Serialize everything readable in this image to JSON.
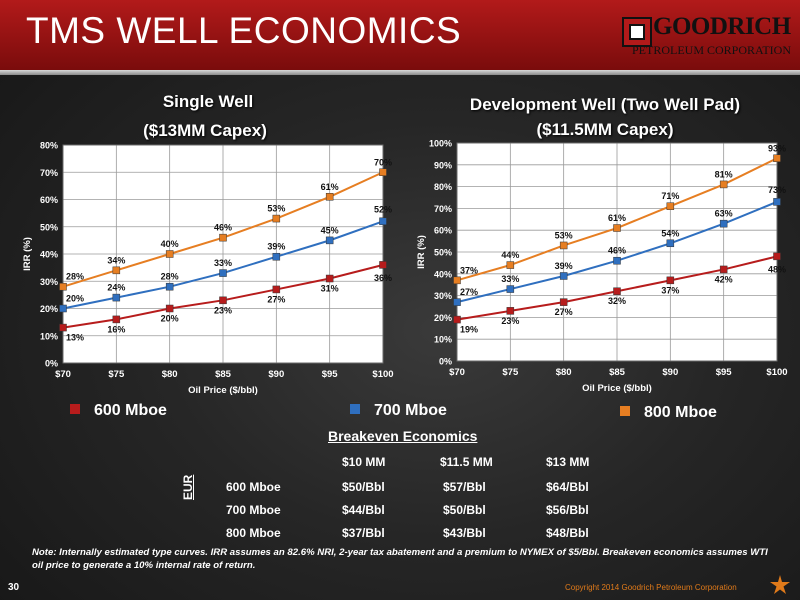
{
  "slide": {
    "title": "TMS WELL ECONOMICS",
    "page_number": "30",
    "logo": {
      "line1": "GOODRICH",
      "line2": "PETROLEUM CORPORATION"
    },
    "copyright": "Copyright 2014 Goodrich Petroleum Corporation"
  },
  "colors": {
    "header_red": "#b21a1a",
    "series_600": "#b71c1c",
    "series_700": "#2f6fbf",
    "series_800": "#e67e22",
    "logo_orange": "#e07a1a"
  },
  "chart_data": [
    {
      "type": "line",
      "title": "Single Well",
      "subtitle": "($13MM Capex)",
      "xlabel": "Oil Price ($/bbl)",
      "ylabel": "IRR (%)",
      "x": [
        "$70",
        "$75",
        "$80",
        "$85",
        "$90",
        "$95",
        "$100"
      ],
      "ylim": [
        0,
        80
      ],
      "yticks": [
        "0%",
        "10%",
        "20%",
        "30%",
        "40%",
        "50%",
        "60%",
        "70%",
        "80%"
      ],
      "grid": true,
      "series": [
        {
          "name": "600 Mboe",
          "values": [
            13,
            16,
            20,
            23,
            27,
            31,
            36
          ],
          "labels": [
            "13%",
            "16%",
            "20%",
            "23%",
            "27%",
            "31%",
            "36%"
          ]
        },
        {
          "name": "700 Mboe",
          "values": [
            20,
            24,
            28,
            33,
            39,
            45,
            52
          ],
          "labels": [
            "20%",
            "24%",
            "28%",
            "33%",
            "39%",
            "45%",
            "52%"
          ]
        },
        {
          "name": "800 Mboe",
          "values": [
            28,
            34,
            40,
            46,
            53,
            61,
            70
          ],
          "labels": [
            "28%",
            "34%",
            "40%",
            "46%",
            "53%",
            "61%",
            "70%"
          ]
        }
      ]
    },
    {
      "type": "line",
      "title": "Development Well (Two Well Pad)",
      "subtitle": "($11.5MM Capex)",
      "xlabel": "Oil Price ($/bbl)",
      "ylabel": "IRR (%)",
      "x": [
        "$70",
        "$75",
        "$80",
        "$85",
        "$90",
        "$95",
        "$100"
      ],
      "ylim": [
        0,
        100
      ],
      "yticks": [
        "0%",
        "10%",
        "20%",
        "30%",
        "40%",
        "50%",
        "60%",
        "70%",
        "80%",
        "90%",
        "100%"
      ],
      "grid": true,
      "series": [
        {
          "name": "600 Mboe",
          "values": [
            19,
            23,
            27,
            32,
            37,
            42,
            48
          ],
          "labels": [
            "19%",
            "23%",
            "27%",
            "32%",
            "37%",
            "42%",
            "48%"
          ]
        },
        {
          "name": "700 Mboe",
          "values": [
            27,
            33,
            39,
            46,
            54,
            63,
            73
          ],
          "labels": [
            "27%",
            "33%",
            "39%",
            "46%",
            "54%",
            "63%",
            "73%"
          ]
        },
        {
          "name": "800 Mboe",
          "values": [
            37,
            44,
            53,
            61,
            71,
            81,
            93
          ],
          "labels": [
            "37%",
            "44%",
            "53%",
            "61%",
            "71%",
            "81%",
            "93%"
          ]
        }
      ]
    }
  ],
  "legend": [
    "600 Mboe",
    "700 Mboe",
    "800 Mboe"
  ],
  "breakeven": {
    "title": "Breakeven Economics",
    "axis_label": "EUR",
    "columns": [
      "$10 MM",
      "$11.5 MM",
      "$13 MM"
    ],
    "rows": [
      {
        "label": "600 Mboe",
        "values": [
          "$50/Bbl",
          "$57/Bbl",
          "$64/Bbl"
        ]
      },
      {
        "label": "700 Mboe",
        "values": [
          "$44/Bbl",
          "$50/Bbl",
          "$56/Bbl"
        ]
      },
      {
        "label": "800 Mboe",
        "values": [
          "$37/Bbl",
          "$43/Bbl",
          "$48/Bbl"
        ]
      }
    ]
  },
  "note": "Note:  Internally estimated type curves.  IRR assumes an 82.6% NRI, 2-year tax abatement and a premium to NYMEX of $5/Bbl.  Breakeven economics assumes WTI oil price to generate  a 10% internal rate of return."
}
